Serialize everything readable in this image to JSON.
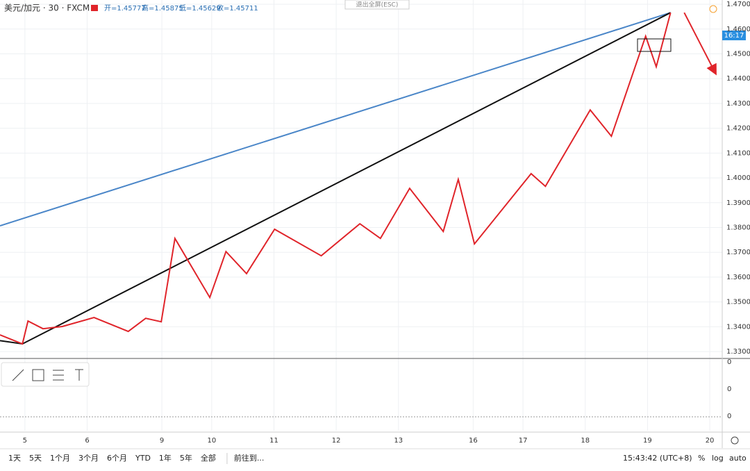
{
  "header": {
    "symbol": "美元/加元 · 30 · FXCM",
    "open": "开=1.45777",
    "high": "高=1.45875",
    "low": "低=1.45629",
    "close": "收=1.45711",
    "exit": "退出全屏(ESC)",
    "price_tag": "16:17"
  },
  "indicator": {
    "labels": [
      "0",
      "0",
      "0"
    ]
  },
  "toolbar": {
    "ranges": [
      "1天",
      "5天",
      "1个月",
      "3个月",
      "6个月",
      "YTD",
      "1年",
      "5年",
      "全部"
    ],
    "goto": "前往到...",
    "clock": "15:43:42 (UTC+8)",
    "percent": "%",
    "log": "log",
    "auto": "auto"
  },
  "chart_data": {
    "type": "line",
    "xlim": [
      -0.4,
      11.2
    ],
    "ylim": [
      1.3275,
      1.4717
    ],
    "xticks": [
      {
        "value": 0,
        "label": "5"
      },
      {
        "value": 1,
        "label": "6"
      },
      {
        "value": 2.2,
        "label": "9"
      },
      {
        "value": 3,
        "label": "10"
      },
      {
        "value": 4,
        "label": "11"
      },
      {
        "value": 5,
        "label": "12"
      },
      {
        "value": 6,
        "label": "13"
      },
      {
        "value": 7.2,
        "label": "16"
      },
      {
        "value": 8,
        "label": "17"
      },
      {
        "value": 9,
        "label": "18"
      },
      {
        "value": 10,
        "label": "19"
      },
      {
        "value": 11,
        "label": "20"
      }
    ],
    "yticks": [
      {
        "value": 1.33,
        "label": "1.33000"
      },
      {
        "value": 1.34,
        "label": "1.34000"
      },
      {
        "value": 1.35,
        "label": "1.35000"
      },
      {
        "value": 1.36,
        "label": "1.36000"
      },
      {
        "value": 1.37,
        "label": "1.37000"
      },
      {
        "value": 1.38,
        "label": "1.38000"
      },
      {
        "value": 1.39,
        "label": "1.39000"
      },
      {
        "value": 1.4,
        "label": "1.40000"
      },
      {
        "value": 1.41,
        "label": "1.41000"
      },
      {
        "value": 1.42,
        "label": "1.42000"
      },
      {
        "value": 1.43,
        "label": "1.43000"
      },
      {
        "value": 1.44,
        "label": "1.44000"
      },
      {
        "value": 1.45,
        "label": "1.45000"
      },
      {
        "value": 1.46,
        "label": "1.46000"
      },
      {
        "value": 1.47,
        "label": "1.47000"
      }
    ],
    "grid": true,
    "series": [
      {
        "color": "#4a86c8",
        "x": [
          -0.4,
          10.37
        ],
        "values": [
          1.3807,
          1.4666
        ]
      },
      {
        "color": "#111111",
        "x": [
          -0.4,
          -0.04,
          10.37
        ],
        "values": [
          1.3344,
          1.3331,
          1.4666
        ]
      },
      {
        "color": "#e0242a",
        "x": [
          -0.4,
          -0.04,
          0.05,
          0.29,
          0.6,
          1.11,
          1.66,
          1.94,
          2.19,
          2.41,
          2.97,
          3.23,
          3.56,
          4.01,
          4.76,
          5.38,
          5.71,
          6.18,
          6.72,
          6.96,
          7.22,
          8.13,
          8.36,
          9.08,
          9.42,
          9.97,
          10.14,
          10.37
        ],
        "values": [
          1.3367,
          1.3331,
          1.3423,
          1.3392,
          1.3401,
          1.3437,
          1.3381,
          1.3434,
          1.342,
          1.3756,
          1.3518,
          1.3703,
          1.3614,
          1.3793,
          1.3686,
          1.3815,
          1.3756,
          1.3958,
          1.3784,
          1.3994,
          1.3734,
          1.4017,
          1.3966,
          1.4274,
          1.4168,
          1.4571,
          1.4448,
          1.4666
        ]
      },
      {
        "color": "#e0242a",
        "arrow": true,
        "x": [
          10.59,
          11.09
        ],
        "values": [
          1.4666,
          1.4423
        ]
      }
    ]
  }
}
